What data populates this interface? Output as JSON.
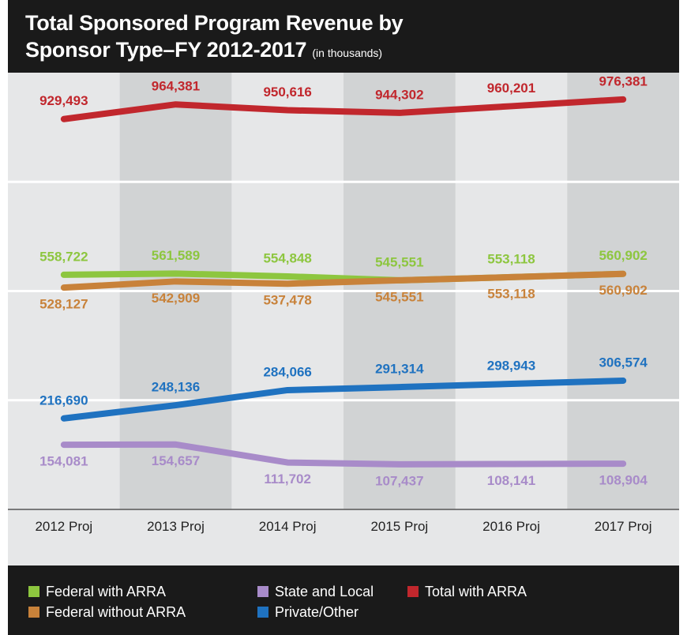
{
  "chart_data": {
    "type": "line",
    "title": "Total Sponsored Program Revenue by Sponsor Type–FY 2012-2017",
    "subtitle": "(in thousands)",
    "categories": [
      "2012 Proj",
      "2013 Proj",
      "2014 Proj",
      "2015 Proj",
      "2016 Proj",
      "2017 Proj"
    ],
    "ylim": [
      0,
      1040000
    ],
    "ygrid": [
      260000,
      520000,
      780000
    ],
    "series": [
      {
        "name": "Federal with ARRA",
        "color": "#8dc63f",
        "values": [
          558722,
          561589,
          554848,
          545551,
          553118,
          560902
        ],
        "value_labels": [
          "558,722",
          "561,589",
          "554,848",
          "545,551",
          "553,118",
          "560,902"
        ]
      },
      {
        "name": "Federal without ARRA",
        "color": "#c8823a",
        "values": [
          528127,
          542909,
          537478,
          545551,
          553118,
          560902
        ],
        "value_labels": [
          "528,127",
          "542,909",
          "537,478",
          "545,551",
          "553,118",
          "560,902"
        ]
      },
      {
        "name": "State and Local",
        "color": "#a88bc9",
        "values": [
          154081,
          154657,
          111702,
          107437,
          108141,
          108904
        ],
        "value_labels": [
          "154,081",
          "154,657",
          "111,702",
          "107,437",
          "108,141",
          "108,904"
        ]
      },
      {
        "name": "Private/Other",
        "color": "#1f72c0",
        "values": [
          216690,
          248136,
          284066,
          291314,
          298943,
          306574
        ],
        "value_labels": [
          "216,690",
          "248,136",
          "284,066",
          "291,314",
          "298,943",
          "306,574"
        ]
      },
      {
        "name": "Total with ARRA",
        "color": "#c1272d",
        "values": [
          929493,
          964381,
          950616,
          944302,
          960201,
          976381
        ],
        "value_labels": [
          "929,493",
          "964,381",
          "950,616",
          "944,302",
          "960,201",
          "976,381"
        ]
      }
    ]
  }
}
